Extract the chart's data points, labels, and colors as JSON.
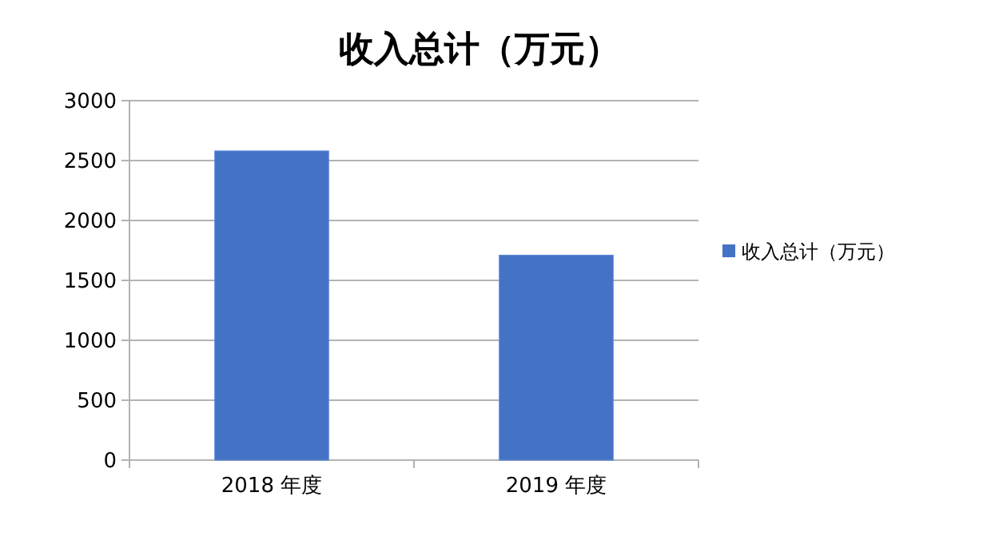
{
  "chart_data": {
    "type": "bar",
    "title": "收入总计（万元）",
    "categories": [
      "2018 年度",
      "2019 年度"
    ],
    "series": [
      {
        "name": "收入总计（万元）",
        "color": "#4472c4",
        "values": [
          2580,
          1710
        ]
      }
    ],
    "ylim": [
      0,
      3000
    ],
    "yticks": [
      0,
      500,
      1000,
      1500,
      2000,
      2500,
      3000
    ],
    "grid": "y",
    "legend": "right"
  }
}
